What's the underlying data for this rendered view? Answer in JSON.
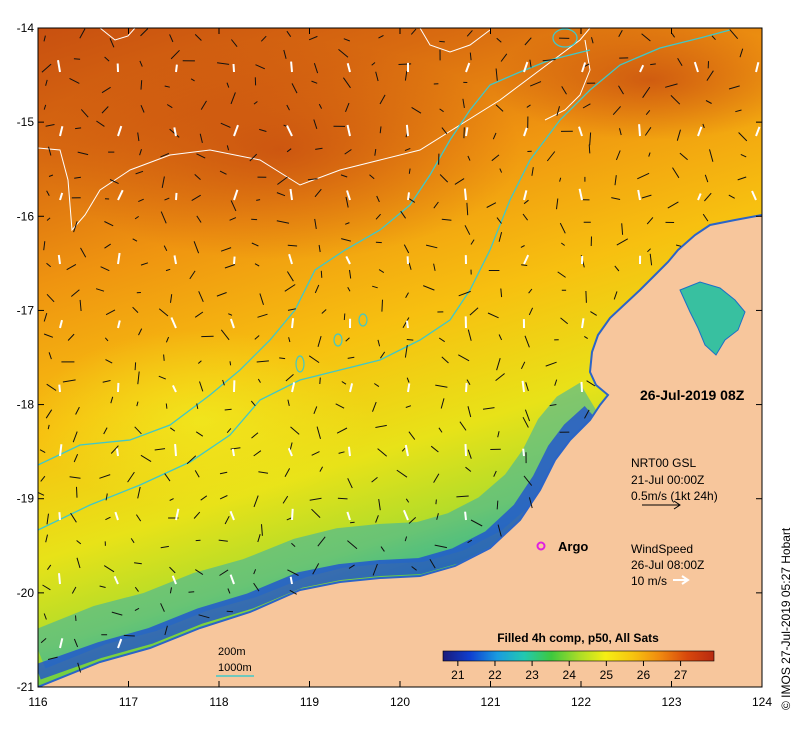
{
  "map": {
    "lon_ticks": [
      "116",
      "117",
      "118",
      "119",
      "120",
      "121",
      "122",
      "123",
      "124"
    ],
    "lat_ticks": [
      "-14",
      "-15",
      "-16",
      "-17",
      "-18",
      "-19",
      "-20",
      "-21"
    ],
    "lon_range": [
      116,
      124
    ],
    "lat_range": [
      -14,
      -21
    ],
    "land_color": "#f7c69c",
    "coast_outline_color": "#2a64c8",
    "isobath_color": "#2fd0c0",
    "contour_color": "#ffffff"
  },
  "annotations": {
    "date_label": "26-Jul-2019 08Z",
    "argo_label": "Argo",
    "argo_marker_color": "#e020e0",
    "current_source": "NRT00 GSL",
    "current_date": "21-Jul 00:00Z",
    "current_scale": "0.5m/s (1kt 24h)",
    "wind_title": "WindSpeed",
    "wind_date": "26-Jul 08:00Z",
    "wind_scale": "10 m/s",
    "isobath_200": "200m",
    "isobath_1000": "1000m",
    "credit": "© IMOS 27-Jul-2019 05:27 Hobart"
  },
  "colorbar": {
    "title": "Filled 4h comp, p50, All Sats",
    "ticks": [
      "21",
      "22",
      "23",
      "24",
      "25",
      "26",
      "27"
    ],
    "range": [
      20.6,
      27.9
    ],
    "stops": [
      "#1a1a7a",
      "#0f3fd0",
      "#1a9be0",
      "#22c8b0",
      "#3ec83e",
      "#a8dc28",
      "#f5ee14",
      "#f7c410",
      "#f08a10",
      "#d8480c",
      "#b82a10"
    ]
  }
}
